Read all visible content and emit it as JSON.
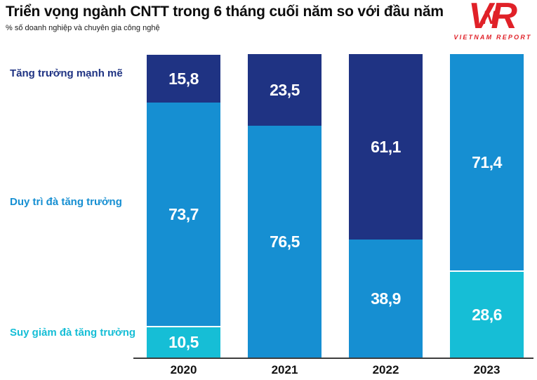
{
  "header": {
    "title": "Triển vọng ngành CNTT trong 6 tháng cuối năm so với đầu năm",
    "subtitle": "% số doanh nghiệp và chuyên gia công nghệ"
  },
  "logo": {
    "letters": {
      "v": "V",
      "n": "N",
      "r": "R"
    },
    "name": "VIETNAM REPORT",
    "color": "#E02128"
  },
  "colors": {
    "strong_growth": "#1F3383",
    "maintain_growth": "#168FD2",
    "decline_growth": "#16BED6",
    "axis": "#3D3D3D",
    "value_label": "#FFFFFF"
  },
  "chart_data": {
    "type": "bar",
    "stacked": true,
    "orientation": "vertical",
    "categories": [
      "2020",
      "2021",
      "2022",
      "2023"
    ],
    "series": [
      {
        "name": "Tăng trưởng mạnh mẽ",
        "color": "#1F3383",
        "values": [
          15.8,
          23.5,
          61.1,
          0
        ]
      },
      {
        "name": "Duy trì đà tăng trưởng",
        "color": "#168FD2",
        "values": [
          73.7,
          76.5,
          38.9,
          71.4
        ]
      },
      {
        "name": "Suy giảm đà tăng trưởng",
        "color": "#16BED6",
        "values": [
          10.5,
          0,
          0,
          28.6
        ]
      }
    ],
    "value_labels_shown": [
      "15,8",
      "73,7",
      "10,5",
      "23,5",
      "76,5",
      "61,1",
      "38,9",
      "71,4",
      "28,6"
    ],
    "decimal_separator": ",",
    "ylim": [
      0,
      100
    ],
    "grid": false,
    "legend_position": "left"
  }
}
